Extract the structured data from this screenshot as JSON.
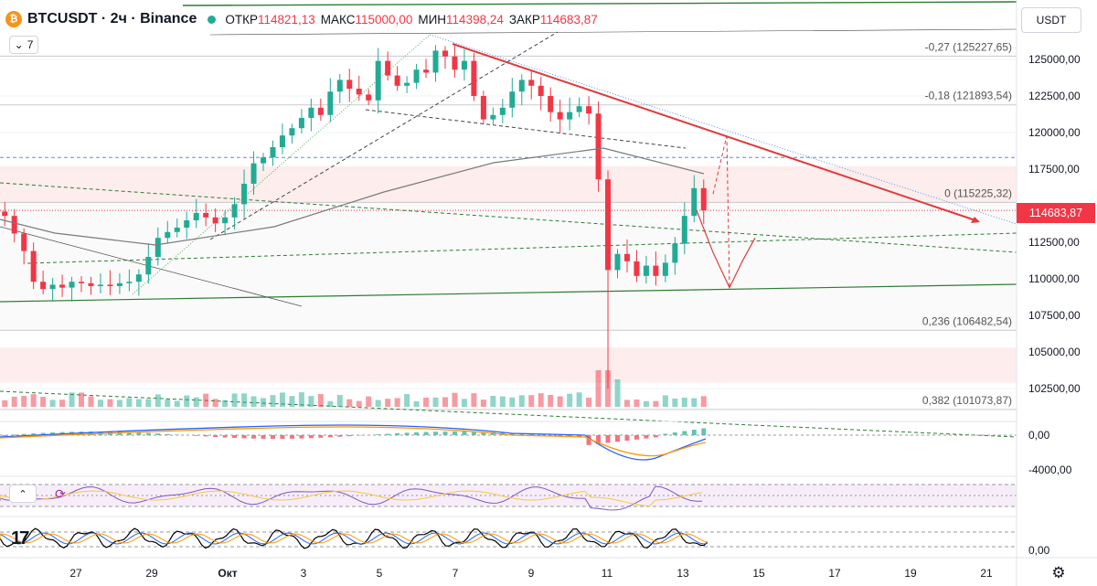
{
  "header": {
    "symbol": "BTCUSDT",
    "interval": "2ч",
    "exchange": "Binance",
    "separator": "·",
    "open_label": "ОТКР",
    "open_value": "114821,13",
    "high_label": "МАКС",
    "high_value": "115000,00",
    "low_label": "МИН",
    "low_value": "114398,24",
    "close_label": "ЗАКР",
    "close_value": "114683,87"
  },
  "indicators_button": {
    "count": "7"
  },
  "currency_button": "USDT",
  "last_price": "114683,87",
  "colors": {
    "up": "#22ab94",
    "down": "#f23645",
    "fib": "#fce8e8",
    "trend": "#e03a3a",
    "ma": "#7a7a7a"
  },
  "icons": [
    "bitcoin-logo-icon",
    "chevron-down-icon",
    "chevron-up-icon",
    "rsi-icon",
    "gear-icon",
    "tradingview-logo-icon"
  ],
  "chart_data": {
    "type": "candlestick",
    "price_axis": {
      "ticks": [
        "125000,00",
        "122500,00",
        "120000,00",
        "117500,00",
        "112500,00",
        "110000,00",
        "107500,00",
        "105000,00",
        "102500,00"
      ],
      "tick_values": [
        125000,
        122500,
        120000,
        117500,
        112500,
        110000,
        107500,
        105000,
        102500
      ]
    },
    "time_axis": {
      "labels": [
        "27",
        "29",
        "Окт",
        "3",
        "5",
        "7",
        "9",
        "11",
        "13",
        "15",
        "17",
        "19",
        "21"
      ]
    },
    "fib_levels": [
      {
        "label": "-0,27 (125227,65)",
        "value": 125227.65
      },
      {
        "label": "-0,18 (121893,54)",
        "value": 121893.54
      },
      {
        "label": "0 (115225,32)",
        "value": 115225.32
      },
      {
        "label": "0,236 (106482,54)",
        "value": 106482.54
      },
      {
        "label": "0,382 (101073,87)",
        "value": 101073.87
      }
    ],
    "macd_axis": {
      "ticks": [
        "0,00",
        "-4000,00"
      ]
    },
    "osc_axis": {
      "ticks": [
        "0,00"
      ]
    },
    "closes": [
      114300,
      113100,
      111900,
      109800,
      109300,
      109600,
      109400,
      109800,
      109700,
      109500,
      109600,
      109500,
      109700,
      109800,
      110300,
      111500,
      112800,
      113200,
      113500,
      114000,
      114500,
      114200,
      113800,
      114200,
      115100,
      116500,
      117900,
      118300,
      119000,
      119800,
      120300,
      121000,
      121700,
      121200,
      122800,
      123600,
      123000,
      122600,
      122200,
      124900,
      123900,
      123200,
      123400,
      124300,
      124100,
      125600,
      125200,
      124300,
      124900,
      122500,
      120900,
      121200,
      121700,
      122800,
      123600,
      123200,
      122500,
      121400,
      120900,
      121400,
      121800,
      121300,
      116800,
      110600,
      111700,
      111200,
      110200,
      110900,
      110200,
      111100,
      112400,
      114300,
      116200,
      114683.87
    ],
    "projection": [
      114683.87,
      111800,
      109400,
      111200,
      112800
    ]
  }
}
